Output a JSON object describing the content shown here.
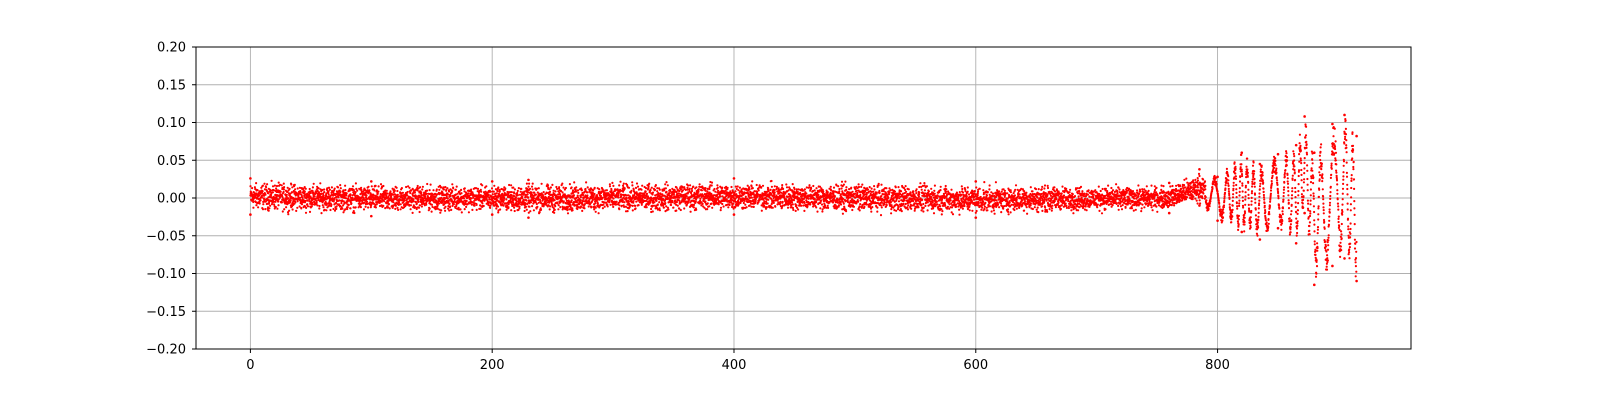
{
  "chart_data": {
    "type": "scatter",
    "title": "",
    "xlabel": "",
    "ylabel": "",
    "xlim": [
      -45,
      960
    ],
    "ylim": [
      -0.2,
      0.2
    ],
    "x_ticks": [
      0,
      200,
      400,
      600,
      800
    ],
    "x_tick_labels": [
      "0",
      "200",
      "400",
      "600",
      "800"
    ],
    "y_ticks": [
      -0.2,
      -0.15,
      -0.1,
      -0.05,
      0.0,
      0.05,
      0.1,
      0.15,
      0.2
    ],
    "y_tick_labels": [
      "−0.20",
      "−0.15",
      "−0.10",
      "−0.05",
      "0.00",
      "0.05",
      "0.10",
      "0.15",
      "0.20"
    ],
    "grid": true,
    "legend": "none",
    "marker": "dot",
    "series": [
      {
        "color": "#ff0000",
        "description_points": [
          {
            "x": 0,
            "y_min": -0.022,
            "y_max": 0.026
          },
          {
            "x": 100,
            "y_min": -0.024,
            "y_max": 0.022
          },
          {
            "x": 200,
            "y_min": -0.022,
            "y_max": 0.022
          },
          {
            "x": 230,
            "y_min": -0.026,
            "y_max": 0.024
          },
          {
            "x": 400,
            "y_min": -0.022,
            "y_max": 0.026
          },
          {
            "x": 600,
            "y_min": -0.026,
            "y_max": 0.022
          },
          {
            "x": 760,
            "y_min": -0.02,
            "y_max": 0.02
          },
          {
            "x": 785,
            "y_min": -0.01,
            "y_max": 0.038
          },
          {
            "x": 800,
            "y_min": -0.03,
            "y_max": 0.028
          },
          {
            "x": 820,
            "y_min": -0.045,
            "y_max": 0.06
          },
          {
            "x": 835,
            "y_min": -0.055,
            "y_max": 0.045
          },
          {
            "x": 850,
            "y_min": -0.04,
            "y_max": 0.058
          },
          {
            "x": 865,
            "y_min": -0.06,
            "y_max": 0.07
          },
          {
            "x": 872,
            "y_min": -0.02,
            "y_max": 0.108
          },
          {
            "x": 880,
            "y_min": -0.115,
            "y_max": 0.06
          },
          {
            "x": 895,
            "y_min": -0.09,
            "y_max": 0.098
          },
          {
            "x": 905,
            "y_min": -0.08,
            "y_max": 0.11
          },
          {
            "x": 915,
            "y_min": -0.11,
            "y_max": 0.082
          }
        ]
      }
    ]
  }
}
